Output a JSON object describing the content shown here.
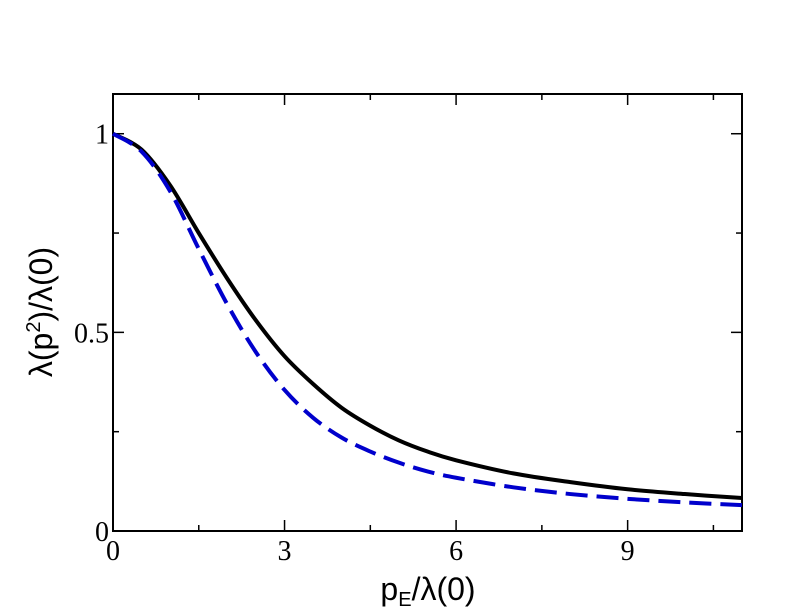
{
  "chart_data": {
    "type": "line",
    "title": "",
    "xlabel": "p_E/λ(0)",
    "ylabel": "λ(p²)/λ(0)",
    "xlim": [
      0,
      11
    ],
    "ylim": [
      0,
      1.1
    ],
    "x_ticks": [
      0,
      3,
      6,
      9
    ],
    "x_tick_labels": [
      "0",
      "3",
      "6",
      "9"
    ],
    "y_ticks": [
      0,
      0.5,
      1
    ],
    "y_tick_labels": [
      "0",
      "0.5",
      "1"
    ],
    "grid": false,
    "legend": "none",
    "series": [
      {
        "color": "#000000",
        "style": "solid",
        "x": [
          0,
          0.5,
          1,
          1.5,
          2,
          2.5,
          3,
          3.5,
          4,
          4.5,
          5,
          5.5,
          6,
          7,
          8,
          9,
          10,
          11
        ],
        "y": [
          1.0,
          0.96,
          0.87,
          0.75,
          0.635,
          0.53,
          0.44,
          0.37,
          0.31,
          0.265,
          0.228,
          0.2,
          0.178,
          0.145,
          0.123,
          0.105,
          0.093,
          0.083
        ]
      },
      {
        "color": "#0000cc",
        "style": "dashed",
        "x": [
          0,
          0.5,
          1,
          1.5,
          2,
          2.5,
          3,
          3.5,
          4,
          4.5,
          5,
          5.5,
          6,
          7,
          8,
          9,
          10,
          11
        ],
        "y": [
          1.0,
          0.955,
          0.855,
          0.71,
          0.57,
          0.45,
          0.355,
          0.285,
          0.235,
          0.2,
          0.172,
          0.15,
          0.134,
          0.11,
          0.093,
          0.081,
          0.072,
          0.065
        ]
      }
    ]
  }
}
